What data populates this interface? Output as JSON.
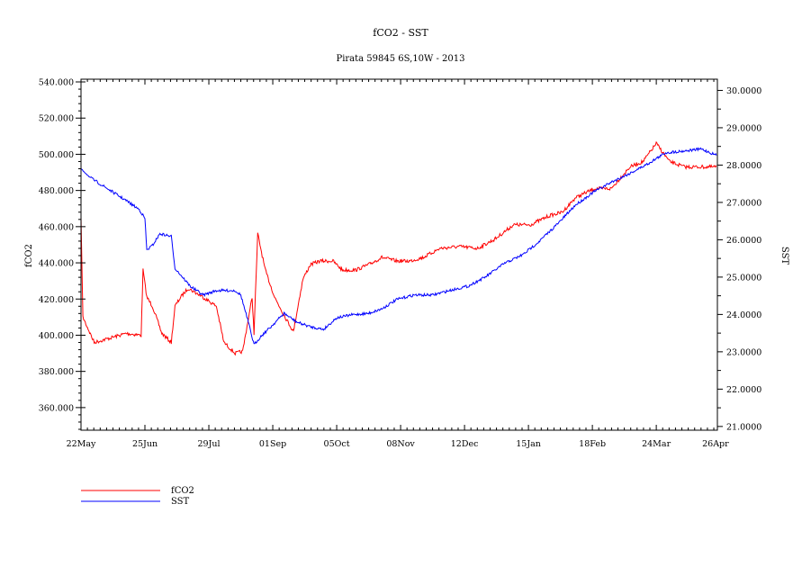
{
  "chart_data": {
    "type": "line",
    "title": "fCO2 - SST",
    "subtitle": "Pirata 59845 6S,10W - 2013",
    "xlabel": "",
    "ylabel": "fCO2",
    "y2label": "SST",
    "x_unit": "days since 22May",
    "xlim": [
      0,
      338.5
    ],
    "x_ticks": [
      {
        "day": 0,
        "label": "22May"
      },
      {
        "day": 34,
        "label": "25Jun"
      },
      {
        "day": 68,
        "label": "29Jul"
      },
      {
        "day": 102,
        "label": "01Sep"
      },
      {
        "day": 136,
        "label": "05Oct"
      },
      {
        "day": 170,
        "label": "08Nov"
      },
      {
        "day": 204,
        "label": "12Dec"
      },
      {
        "day": 238,
        "label": "15Jan"
      },
      {
        "day": 272,
        "label": "18Feb"
      },
      {
        "day": 306,
        "label": "24Mar"
      },
      {
        "day": 337.5,
        "label": "26Apr"
      }
    ],
    "ylim": [
      347.5,
      541.5
    ],
    "y_ticks": [
      "360.000",
      "380.000",
      "400.000",
      "420.000",
      "440.000",
      "460.000",
      "480.000",
      "500.000",
      "520.000",
      "540.000"
    ],
    "y2lim": [
      20.9,
      30.3
    ],
    "y2_ticks": [
      "21.0000",
      "22.0000",
      "23.0000",
      "24.0000",
      "25.0000",
      "26.0000",
      "27.0000",
      "28.0000",
      "29.0000",
      "30.0000"
    ],
    "grid": false,
    "legend_position": "bottom-left",
    "series": [
      {
        "name": "fCO2",
        "axis": "left",
        "color": "#ff0000",
        "points": [
          [
            0,
            465
          ],
          [
            1,
            410
          ],
          [
            7,
            396
          ],
          [
            14,
            398
          ],
          [
            24,
            401
          ],
          [
            32,
            400
          ],
          [
            33,
            436
          ],
          [
            35,
            421
          ],
          [
            38,
            416
          ],
          [
            43,
            401
          ],
          [
            48,
            396
          ],
          [
            50,
            416
          ],
          [
            53,
            421
          ],
          [
            57,
            426
          ],
          [
            65,
            421
          ],
          [
            72,
            416
          ],
          [
            76,
            396
          ],
          [
            82,
            390
          ],
          [
            86,
            391
          ],
          [
            91,
            421
          ],
          [
            92,
            401
          ],
          [
            94,
            456
          ],
          [
            98,
            436
          ],
          [
            103,
            421
          ],
          [
            108,
            411
          ],
          [
            113,
            402
          ],
          [
            118,
            431
          ],
          [
            122,
            439
          ],
          [
            127,
            441
          ],
          [
            134,
            441
          ],
          [
            139,
            436
          ],
          [
            146,
            436
          ],
          [
            153,
            439
          ],
          [
            160,
            443
          ],
          [
            168,
            441
          ],
          [
            175,
            441
          ],
          [
            182,
            443
          ],
          [
            191,
            448
          ],
          [
            201,
            449
          ],
          [
            211,
            448
          ],
          [
            220,
            453
          ],
          [
            230,
            461
          ],
          [
            239,
            461
          ],
          [
            249,
            466
          ],
          [
            256,
            468
          ],
          [
            263,
            476
          ],
          [
            273,
            481
          ],
          [
            282,
            481
          ],
          [
            292,
            493
          ],
          [
            299,
            496
          ],
          [
            306,
            506
          ],
          [
            313,
            496
          ],
          [
            321,
            493
          ],
          [
            328,
            493
          ],
          [
            338,
            493
          ]
        ]
      },
      {
        "name": "SST",
        "axis": "right",
        "color": "#0000ff",
        "points": [
          [
            0,
            27.9
          ],
          [
            5,
            27.66
          ],
          [
            14,
            27.37
          ],
          [
            24,
            27.05
          ],
          [
            31,
            26.81
          ],
          [
            34,
            26.57
          ],
          [
            35,
            25.72
          ],
          [
            38,
            25.85
          ],
          [
            42,
            26.16
          ],
          [
            48,
            26.09
          ],
          [
            50,
            25.24
          ],
          [
            58,
            24.76
          ],
          [
            65,
            24.52
          ],
          [
            72,
            24.64
          ],
          [
            82,
            24.64
          ],
          [
            85,
            24.52
          ],
          [
            89,
            23.79
          ],
          [
            92,
            23.19
          ],
          [
            96,
            23.43
          ],
          [
            101,
            23.67
          ],
          [
            108,
            24.03
          ],
          [
            115,
            23.79
          ],
          [
            122,
            23.67
          ],
          [
            129,
            23.6
          ],
          [
            136,
            23.91
          ],
          [
            144,
            23.99
          ],
          [
            153,
            24.03
          ],
          [
            160,
            24.15
          ],
          [
            168,
            24.4
          ],
          [
            177,
            24.52
          ],
          [
            187,
            24.52
          ],
          [
            196,
            24.64
          ],
          [
            206,
            24.76
          ],
          [
            215,
            25.0
          ],
          [
            225,
            25.36
          ],
          [
            235,
            25.6
          ],
          [
            244,
            25.97
          ],
          [
            254,
            26.45
          ],
          [
            263,
            26.93
          ],
          [
            273,
            27.29
          ],
          [
            282,
            27.54
          ],
          [
            292,
            27.78
          ],
          [
            301,
            28.02
          ],
          [
            311,
            28.33
          ],
          [
            321,
            28.38
          ],
          [
            330,
            28.43
          ],
          [
            338,
            28.26
          ]
        ]
      }
    ],
    "legend": [
      {
        "label": "fCO2",
        "color": "#ff0000"
      },
      {
        "label": "SST",
        "color": "#0000ff"
      }
    ]
  }
}
